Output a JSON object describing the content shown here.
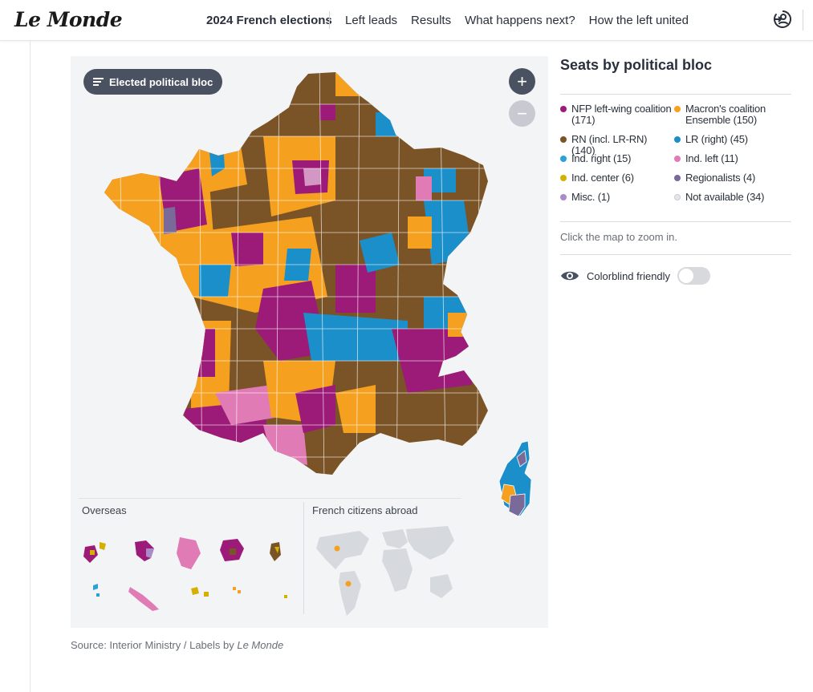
{
  "header": {
    "logo": "Le Monde",
    "nav_title": "2024 French elections",
    "links": [
      "Left leads",
      "Results",
      "What happens next?",
      "How the left united"
    ],
    "login_icon": "login-icon"
  },
  "map": {
    "selector_label": "Elected political bloc",
    "selector_icon": "list-icon",
    "zoom_in": "+",
    "zoom_out": "−",
    "overseas_label": "Overseas",
    "abroad_label": "French citizens abroad"
  },
  "source": {
    "prefix": "Source: Interior Ministry / Labels by ",
    "emphasis": "Le Monde"
  },
  "legend": {
    "title": "Seats by political bloc",
    "items": [
      {
        "label": "NFP left-wing coalition (171)",
        "color": "#9c1a78"
      },
      {
        "label": "Macron's coalition Ensemble (150)",
        "color": "#f6a020"
      },
      {
        "label": "RN (incl. LR-RN) (140)",
        "color": "#7a5426"
      },
      {
        "label": "LR (right) (45)",
        "color": "#1b8fca"
      },
      {
        "label": "Ind. right (15)",
        "color": "#2aa2d7"
      },
      {
        "label": "Ind. left (11)",
        "color": "#e07bb6"
      },
      {
        "label": "Ind. center (6)",
        "color": "#d6b000"
      },
      {
        "label": "Regionalists (4)",
        "color": "#7a6a9a"
      },
      {
        "label": "Misc. (1)",
        "color": "#a98bc9"
      },
      {
        "label": "Not available (34)",
        "color": "#e4e6e9"
      }
    ],
    "hint": "Click the map to zoom in.",
    "colorblind_label": "Colorblind friendly",
    "colorblind_on": false,
    "colorblind_icon": "eye-icon"
  }
}
